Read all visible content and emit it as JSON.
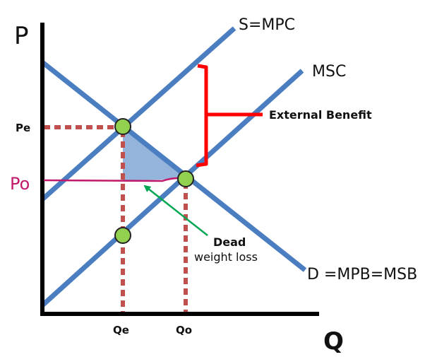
{
  "axes": {
    "y_label": "P",
    "x_label": "Q"
  },
  "curves": {
    "supply": "S=MPC",
    "msc": "MSC",
    "demand": "D =MPB=MSB"
  },
  "annotations": {
    "external_benefit": "External Benefit",
    "deadweight_line1": "Dead",
    "deadweight_line2": "weight loss"
  },
  "ticks": {
    "pe": "Pe",
    "po": "Po",
    "qe": "Qe",
    "qo": "Qo"
  },
  "colors": {
    "curve": "#4a7ec1",
    "guide": "#c0504d",
    "bracket": "#ff0000",
    "price_line": "#c0186a",
    "point_fill": "#92d050",
    "arrow": "#00a651",
    "dwl_fill": "#8fb0d9"
  }
}
